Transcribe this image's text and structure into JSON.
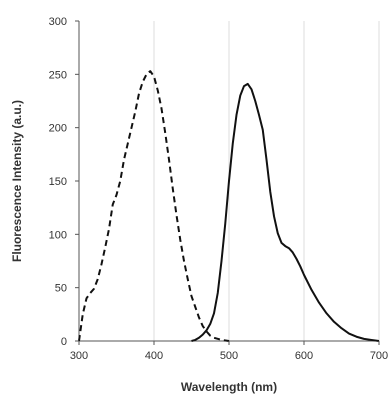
{
  "chart_data": {
    "type": "line",
    "title": "",
    "xlabel": "Wavelength (nm)",
    "ylabel": "Fluorescence Intensity (a.u.)",
    "xlim": [
      300,
      700
    ],
    "ylim": [
      0,
      300
    ],
    "x_ticks": [
      300,
      400,
      500,
      600,
      700
    ],
    "y_ticks": [
      0,
      50,
      100,
      150,
      200,
      250,
      300
    ],
    "x_tick_labels": [
      "300",
      "400",
      "500",
      "600",
      "700"
    ],
    "y_tick_labels": [
      "0",
      "50",
      "100",
      "150",
      "200",
      "250",
      "300"
    ],
    "grid": "vertical",
    "legend": "none",
    "series": [
      {
        "line_style": "dashed",
        "color": "#111111",
        "points": [
          [
            300,
            0
          ],
          [
            305,
            25
          ],
          [
            310,
            40
          ],
          [
            315,
            45
          ],
          [
            320,
            49
          ],
          [
            325,
            58
          ],
          [
            330,
            72
          ],
          [
            335,
            88
          ],
          [
            340,
            105
          ],
          [
            345,
            128
          ],
          [
            350,
            137
          ],
          [
            355,
            150
          ],
          [
            360,
            170
          ],
          [
            365,
            185
          ],
          [
            370,
            200
          ],
          [
            375,
            215
          ],
          [
            380,
            232
          ],
          [
            385,
            243
          ],
          [
            390,
            250
          ],
          [
            395,
            253
          ],
          [
            400,
            248
          ],
          [
            405,
            235
          ],
          [
            410,
            218
          ],
          [
            415,
            195
          ],
          [
            420,
            170
          ],
          [
            425,
            143
          ],
          [
            430,
            118
          ],
          [
            435,
            95
          ],
          [
            440,
            75
          ],
          [
            445,
            58
          ],
          [
            450,
            42
          ],
          [
            455,
            32
          ],
          [
            460,
            22
          ],
          [
            465,
            14
          ],
          [
            470,
            9
          ],
          [
            475,
            5
          ],
          [
            480,
            3
          ],
          [
            490,
            1
          ],
          [
            500,
            0
          ]
        ]
      },
      {
        "line_style": "solid",
        "color": "#111111",
        "points": [
          [
            450,
            0
          ],
          [
            455,
            1
          ],
          [
            460,
            3
          ],
          [
            465,
            6
          ],
          [
            470,
            10
          ],
          [
            475,
            16
          ],
          [
            480,
            26
          ],
          [
            485,
            45
          ],
          [
            490,
            75
          ],
          [
            495,
            110
          ],
          [
            500,
            150
          ],
          [
            505,
            185
          ],
          [
            510,
            212
          ],
          [
            515,
            230
          ],
          [
            520,
            239
          ],
          [
            525,
            241
          ],
          [
            530,
            236
          ],
          [
            535,
            225
          ],
          [
            540,
            212
          ],
          [
            545,
            198
          ],
          [
            550,
            170
          ],
          [
            555,
            140
          ],
          [
            560,
            117
          ],
          [
            565,
            101
          ],
          [
            570,
            92
          ],
          [
            575,
            89
          ],
          [
            580,
            87
          ],
          [
            585,
            83
          ],
          [
            590,
            77
          ],
          [
            595,
            70
          ],
          [
            600,
            62
          ],
          [
            610,
            48
          ],
          [
            620,
            36
          ],
          [
            630,
            26
          ],
          [
            640,
            18
          ],
          [
            650,
            12
          ],
          [
            660,
            7
          ],
          [
            670,
            4
          ],
          [
            680,
            2
          ],
          [
            690,
            1
          ],
          [
            700,
            0
          ]
        ]
      }
    ]
  }
}
